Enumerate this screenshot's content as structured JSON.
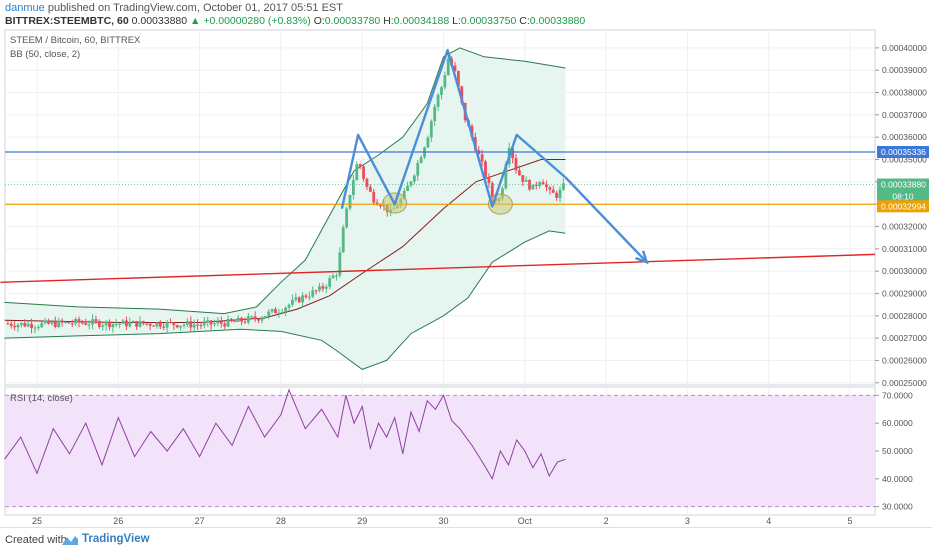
{
  "header": {
    "author": "danmue",
    "published": "published on TradingView.com, October 01, 2017 05:51 EST",
    "symbol": "BITTREX:STEEMBTC, 60",
    "last": "0.00033880",
    "change_arrow": "▲",
    "change": "+0.00000280 (+0.83%)",
    "o_label": "O:",
    "o": "0.00033780",
    "h_label": "H:",
    "h": "0.00034188",
    "l_label": "L:",
    "l": "0.00033750",
    "c_label": "C:",
    "c": "0.00033880"
  },
  "legend": {
    "series": "STEEM / Bitcoin, 60, BITTREX",
    "bb": "BB (50, close, 2)",
    "rsi": "RSI (14, close)"
  },
  "price_labels": [
    "0.00040000",
    "0.00039000",
    "0.00038000",
    "0.00037000",
    "0.00036000",
    "0.00035000",
    "0.00034000",
    "0.00033000",
    "0.00032000",
    "0.00031000",
    "0.00030000",
    "0.00029000",
    "0.00028000",
    "0.00027000",
    "0.00026000",
    "0.00025000"
  ],
  "badges": {
    "blue_line": "0.00035336",
    "last_price": "0.00033880",
    "countdown": "08:10",
    "orange_line": "0.00032994"
  },
  "rsi_labels": [
    "70.0000",
    "60.0000",
    "50.0000",
    "40.0000",
    "30.0000"
  ],
  "time_labels": [
    "25",
    "26",
    "27",
    "28",
    "29",
    "30",
    "Oct",
    "2",
    "3",
    "4",
    "5"
  ],
  "footer": {
    "created": "Created with",
    "brand": "TradingView"
  },
  "colors": {
    "up": "#53b987",
    "down": "#eb4d5c",
    "bb_fill": "#e6f5ef",
    "bb_band": "#2b7a4b",
    "bb_basis": "#8b1a1a",
    "blue": "#3c78d8",
    "orange": "#f0a000",
    "red_trend": "#e12424",
    "arrow": "#4a8fd8",
    "rsi_line": "#8e3e9f",
    "rsi_fill": "#f3e3fa",
    "circle": "#c8c97a"
  },
  "chart_data": {
    "type": "candlestick",
    "ylim": [
      0.000249,
      0.000408
    ],
    "rsi_range": [
      27,
      73
    ],
    "time_ticks": [
      {
        "label": "25",
        "day": 0
      },
      {
        "label": "26",
        "day": 1
      },
      {
        "label": "27",
        "day": 2
      },
      {
        "label": "28",
        "day": 3
      },
      {
        "label": "29",
        "day": 4
      },
      {
        "label": "30",
        "day": 5
      },
      {
        "label": "Oct",
        "day": 6
      },
      {
        "label": "2",
        "day": 7
      },
      {
        "label": "3",
        "day": 8
      },
      {
        "label": "4",
        "day": 9
      },
      {
        "label": "5",
        "day": 10
      }
    ],
    "price_path": [
      [
        -0.4,
        0.0002765
      ],
      [
        0.0,
        0.000276
      ],
      [
        0.5,
        0.000277
      ],
      [
        1.0,
        0.0002765
      ],
      [
        1.5,
        0.0002765
      ],
      [
        2.0,
        0.000276
      ],
      [
        2.4,
        0.000277
      ],
      [
        2.7,
        0.000279
      ],
      [
        3.0,
        0.000283
      ],
      [
        3.3,
        0.000289
      ],
      [
        3.5,
        0.000292
      ],
      [
        3.7,
        0.0003
      ],
      [
        3.75,
        0.000315
      ],
      [
        3.85,
        0.000335
      ],
      [
        3.95,
        0.00035
      ],
      [
        4.05,
        0.000338
      ],
      [
        4.15,
        0.000332
      ],
      [
        4.25,
        0.00033
      ],
      [
        4.35,
        0.000326
      ],
      [
        4.5,
        0.000333
      ],
      [
        4.65,
        0.000345
      ],
      [
        4.8,
        0.00036
      ],
      [
        4.9,
        0.000375
      ],
      [
        5.0,
        0.000385
      ],
      [
        5.05,
        0.000396
      ],
      [
        5.15,
        0.000388
      ],
      [
        5.25,
        0.00037
      ],
      [
        5.35,
        0.00036
      ],
      [
        5.5,
        0.000345
      ],
      [
        5.6,
        0.000333
      ],
      [
        5.7,
        0.000332
      ],
      [
        5.8,
        0.000358
      ],
      [
        5.9,
        0.000345
      ],
      [
        6.0,
        0.00034
      ],
      [
        6.1,
        0.000337
      ],
      [
        6.2,
        0.000342
      ],
      [
        6.3,
        0.000335
      ],
      [
        6.4,
        0.000334
      ],
      [
        6.5,
        0.0003388
      ]
    ],
    "bb_upper": [
      [
        -0.4,
        0.000286
      ],
      [
        0.5,
        0.000284
      ],
      [
        1.5,
        0.000283
      ],
      [
        2.3,
        0.000281
      ],
      [
        2.7,
        0.000284
      ],
      [
        3.0,
        0.000295
      ],
      [
        3.3,
        0.000305
      ],
      [
        3.6,
        0.000325
      ],
      [
        3.9,
        0.000345
      ],
      [
        4.2,
        0.000352
      ],
      [
        4.5,
        0.00036
      ],
      [
        4.8,
        0.000375
      ],
      [
        5.0,
        0.000396
      ],
      [
        5.2,
        0.0004
      ],
      [
        5.5,
        0.000396
      ],
      [
        6.0,
        0.000394
      ],
      [
        6.5,
        0.000391
      ]
    ],
    "bb_lower": [
      [
        -0.4,
        0.00027
      ],
      [
        0.5,
        0.000271
      ],
      [
        1.5,
        0.000272
      ],
      [
        2.5,
        0.000274
      ],
      [
        3.0,
        0.000273
      ],
      [
        3.5,
        0.000269
      ],
      [
        3.7,
        0.000264
      ],
      [
        4.0,
        0.000256
      ],
      [
        4.3,
        0.00026
      ],
      [
        4.6,
        0.000272
      ],
      [
        5.0,
        0.00028
      ],
      [
        5.3,
        0.000288
      ],
      [
        5.6,
        0.000304
      ],
      [
        6.0,
        0.000313
      ],
      [
        6.3,
        0.000318
      ],
      [
        6.5,
        0.000317
      ]
    ],
    "bb_basis": [
      [
        -0.4,
        0.000278
      ],
      [
        1.0,
        0.000277
      ],
      [
        2.0,
        0.000277
      ],
      [
        2.8,
        0.000279
      ],
      [
        3.2,
        0.000283
      ],
      [
        3.6,
        0.000289
      ],
      [
        4.0,
        0.000299
      ],
      [
        4.5,
        0.000311
      ],
      [
        5.0,
        0.000328
      ],
      [
        5.4,
        0.00034
      ],
      [
        5.8,
        0.000345
      ],
      [
        6.2,
        0.00035
      ],
      [
        6.5,
        0.00035
      ]
    ],
    "rsi": [
      [
        -0.4,
        47
      ],
      [
        -0.2,
        55
      ],
      [
        0.0,
        42
      ],
      [
        0.2,
        58
      ],
      [
        0.4,
        49
      ],
      [
        0.6,
        60
      ],
      [
        0.8,
        45
      ],
      [
        1.0,
        62
      ],
      [
        1.2,
        48
      ],
      [
        1.4,
        57
      ],
      [
        1.6,
        50
      ],
      [
        1.8,
        58
      ],
      [
        2.0,
        48
      ],
      [
        2.2,
        60
      ],
      [
        2.4,
        52
      ],
      [
        2.6,
        66
      ],
      [
        2.8,
        55
      ],
      [
        3.0,
        63
      ],
      [
        3.1,
        72
      ],
      [
        3.3,
        58
      ],
      [
        3.5,
        65
      ],
      [
        3.7,
        55
      ],
      [
        3.8,
        70
      ],
      [
        3.9,
        60
      ],
      [
        4.0,
        66
      ],
      [
        4.1,
        51
      ],
      [
        4.2,
        60
      ],
      [
        4.3,
        55
      ],
      [
        4.4,
        62
      ],
      [
        4.5,
        49
      ],
      [
        4.6,
        64
      ],
      [
        4.7,
        57
      ],
      [
        4.8,
        68
      ],
      [
        4.9,
        65
      ],
      [
        5.0,
        70
      ],
      [
        5.1,
        61
      ],
      [
        5.2,
        58
      ],
      [
        5.35,
        52
      ],
      [
        5.5,
        45
      ],
      [
        5.6,
        40
      ],
      [
        5.7,
        50
      ],
      [
        5.8,
        45
      ],
      [
        5.9,
        54
      ],
      [
        6.0,
        50
      ],
      [
        6.1,
        44
      ],
      [
        6.2,
        49
      ],
      [
        6.3,
        41
      ],
      [
        6.4,
        46
      ],
      [
        6.5,
        47
      ]
    ],
    "lines": {
      "blue_horizontal": 0.00035336,
      "orange_horizontal": 0.00032994,
      "red_trend": [
        [
          -0.45,
          0.000295
        ],
        [
          10.2,
          0.0003075
        ]
      ],
      "blue_pattern": [
        [
          3.75,
          0.000328
        ],
        [
          3.95,
          0.000361
        ],
        [
          4.4,
          0.00033
        ],
        [
          5.05,
          0.000399
        ],
        [
          5.6,
          0.000329
        ],
        [
          5.9,
          0.000361
        ],
        [
          6.5,
          0.000342
        ]
      ],
      "forecast_arrow": [
        [
          6.5,
          0.000342
        ],
        [
          7.5,
          0.000304
        ]
      ],
      "circles": [
        [
          4.4,
          0.0003305
        ],
        [
          5.7,
          0.00033
        ]
      ]
    },
    "rsi_levels": [
      70,
      30
    ]
  }
}
